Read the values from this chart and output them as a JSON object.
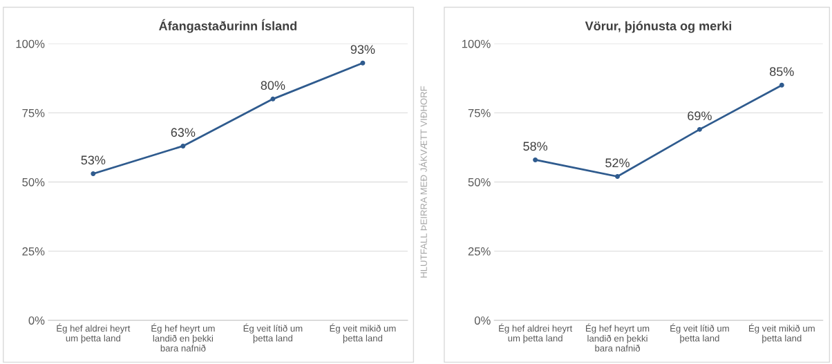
{
  "chart_data": [
    {
      "type": "line",
      "title": "Áfangastaðurinn Ísland",
      "categories": [
        "Ég hef aldrei heyrt\num þetta land",
        "Ég hef heyrt um\nlandið en þekki\nbara nafnið",
        "Ég veit lítið um\nþetta land",
        "Ég veit mikið um\nþetta land"
      ],
      "series": [
        {
          "color": "#2f5b8e",
          "values": [
            53,
            63,
            80,
            93
          ],
          "value_labels": [
            "53%",
            "63%",
            "80%",
            "93%"
          ]
        }
      ],
      "ylim": [
        0,
        100
      ],
      "yticks": [
        {
          "value": 0,
          "label": "0%"
        },
        {
          "value": 25,
          "label": "25%"
        },
        {
          "value": 50,
          "label": "50%"
        },
        {
          "value": 75,
          "label": "75%"
        },
        {
          "value": 100,
          "label": "100%"
        }
      ],
      "grid": "y",
      "marker": "circle",
      "line_style": "solid"
    },
    {
      "type": "line",
      "title": "Vörur, þjónusta og merki",
      "ylabel": "HLUTFALL ÞEIRRA MEÐ JÁKVÆTT VIÐHORF",
      "categories": [
        "Ég hef aldrei heyrt\num þetta land",
        "Ég hef heyrt um\nlandið en þekki\nbara nafnið",
        "Ég veit lítið um\nþetta land",
        "Ég veit mikið um\nþetta land"
      ],
      "series": [
        {
          "color": "#2f5b8e",
          "values": [
            58,
            52,
            69,
            85
          ],
          "value_labels": [
            "58%",
            "52%",
            "69%",
            "85%"
          ]
        }
      ],
      "ylim": [
        0,
        100
      ],
      "yticks": [
        {
          "value": 0,
          "label": "0%"
        },
        {
          "value": 25,
          "label": "25%"
        },
        {
          "value": 50,
          "label": "50%"
        },
        {
          "value": 75,
          "label": "75%"
        },
        {
          "value": 100,
          "label": "100%"
        }
      ],
      "grid": "y",
      "marker": "circle",
      "line_style": "solid"
    }
  ]
}
